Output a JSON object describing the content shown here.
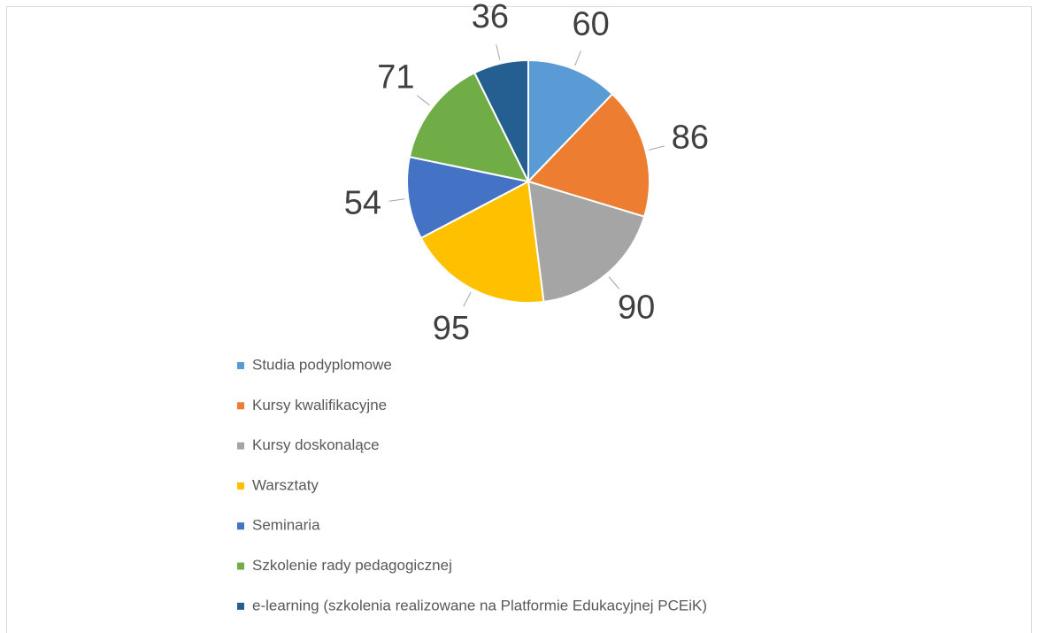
{
  "chart_data": {
    "type": "pie",
    "categories": [
      "Studia podyplomowe",
      "Kursy kwalifikacyjne",
      "Kursy doskonalące",
      "Warsztaty",
      "Seminaria",
      "Szkolenie rady pedagogicznej",
      "e-learning (szkolenia realizowane na Platformie Edukacyjnej PCEiK)"
    ],
    "values": [
      60,
      86,
      90,
      95,
      54,
      71,
      36
    ],
    "colors": [
      "#5b9bd5",
      "#ed7d31",
      "#a5a5a5",
      "#ffc000",
      "#4472c4",
      "#70ad47",
      "#255e91"
    ],
    "legend": "bottom"
  }
}
